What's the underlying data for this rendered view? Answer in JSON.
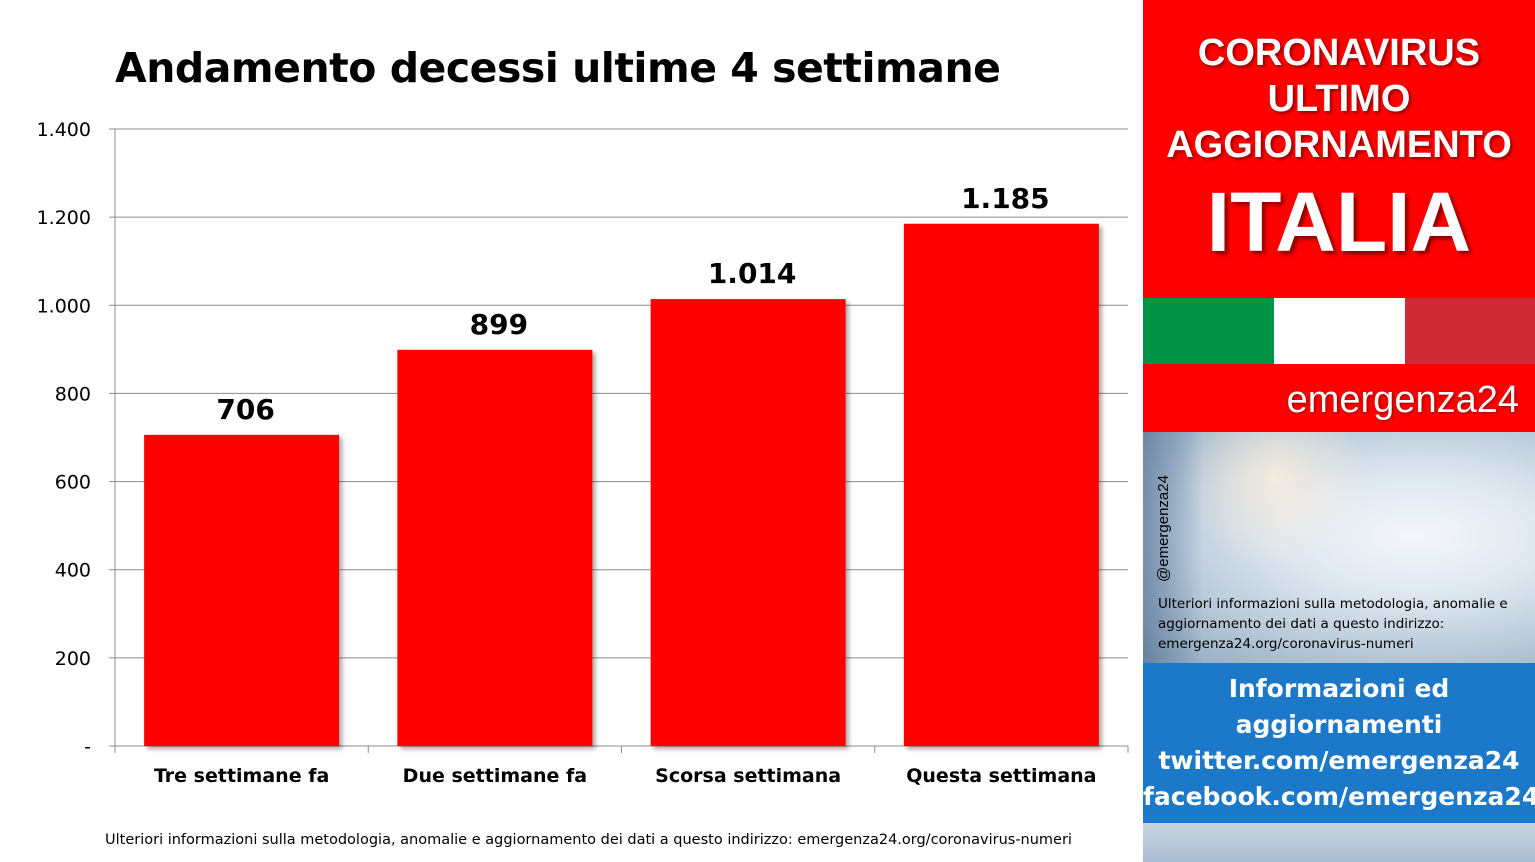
{
  "chart_data": {
    "type": "bar",
    "title": "Andamento decessi ultime 4 settimane",
    "categories": [
      "Tre settimane fa",
      "Due settimane fa",
      "Scorsa settimana",
      "Questa settimana"
    ],
    "values": [
      706,
      899,
      1014,
      1185
    ],
    "value_labels": [
      "706",
      "899",
      "1.014",
      "1.185"
    ],
    "ylim": [
      0,
      1400
    ],
    "yticks": [
      0,
      200,
      400,
      600,
      800,
      1000,
      1200,
      1400
    ],
    "ytick_labels": [
      "-",
      "200",
      "400",
      "600",
      "800",
      "1.000",
      "1.200",
      "1.400"
    ],
    "grid": true,
    "bar_color": "#ff0000",
    "xlabel": "",
    "ylabel": ""
  },
  "footer_note": "Ulteriori informazioni sulla metodologia, anomalie e aggiornamento dei dati a questo indirizzo: emergenza24.org/coronavirus-numeri",
  "side_panel": {
    "header_lines": [
      "CORONAVIRUS",
      "ULTIMO",
      "AGGIORNAMENTO"
    ],
    "country": "ITALIA",
    "brand": "emergenza24",
    "handle": "@emergenza24",
    "photo_note": "Ulteriori informazioni sulla metodologia, anomalie e aggiornamento dei dati a questo indirizzo: emergenza24.org/coronavirus-numeri",
    "social_lines": [
      "Informazioni ed",
      "aggiornamenti",
      "twitter.com/emergenza24",
      "facebook.com/emergenza24"
    ],
    "colors": {
      "red": "#ff0000",
      "flag_green": "#009246",
      "flag_white": "#ffffff",
      "flag_red": "#ce2b37",
      "social_blue": "#1c78c8"
    }
  }
}
